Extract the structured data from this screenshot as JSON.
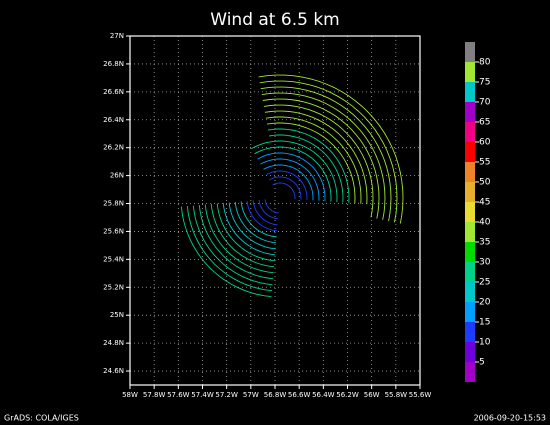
{
  "chart_data": {
    "type": "vector",
    "title": "Wind at 6.5 km",
    "xlim": [
      -58,
      -55.6
    ],
    "ylim": [
      24.5,
      27
    ],
    "xticks": [
      {
        "value": -58,
        "label": "58W"
      },
      {
        "value": -57.8,
        "label": "57.8W"
      },
      {
        "value": -57.6,
        "label": "57.6W"
      },
      {
        "value": -57.4,
        "label": "57.4W"
      },
      {
        "value": -57.2,
        "label": "57.2W"
      },
      {
        "value": -57,
        "label": "57W"
      },
      {
        "value": -56.8,
        "label": "56.8W"
      },
      {
        "value": -56.6,
        "label": "56.6W"
      },
      {
        "value": -56.4,
        "label": "56.4W"
      },
      {
        "value": -56.2,
        "label": "56.2W"
      },
      {
        "value": -56,
        "label": "56W"
      },
      {
        "value": -55.8,
        "label": "55.8W"
      },
      {
        "value": -55.6,
        "label": "55.6W"
      }
    ],
    "yticks": [
      {
        "value": 24.6,
        "label": "24.6N"
      },
      {
        "value": 24.8,
        "label": "24.8N"
      },
      {
        "value": 25,
        "label": "25N"
      },
      {
        "value": 25.2,
        "label": "25.2N"
      },
      {
        "value": 25.4,
        "label": "25.4N"
      },
      {
        "value": 25.6,
        "label": "25.6N"
      },
      {
        "value": 25.8,
        "label": "25.8N"
      },
      {
        "value": 26,
        "label": "26N"
      },
      {
        "value": 26.2,
        "label": "26.2N"
      },
      {
        "value": 26.4,
        "label": "26.4N"
      },
      {
        "value": 26.6,
        "label": "26.6N"
      },
      {
        "value": 26.8,
        "label": "26.8N"
      },
      {
        "value": 27,
        "label": "27N"
      }
    ],
    "grid": true,
    "colorbar": {
      "levels": [
        5,
        10,
        15,
        20,
        25,
        30,
        35,
        40,
        45,
        50,
        55,
        60,
        65,
        70,
        75,
        80
      ],
      "colors": [
        "#a000c8",
        "#6e00dc",
        "#1e3cff",
        "#00a0ff",
        "#00c8c8",
        "#00d28c",
        "#00dc00",
        "#a0e632",
        "#e6dc32",
        "#e6af2d",
        "#f08228",
        "#fa0000",
        "#f00082",
        "#a000c8",
        "#00c8c8",
        "#a0e632",
        "#808080"
      ]
    },
    "footer_left": "GrADS: COLA/IGES",
    "footer_right": "2006-09-20-15:53"
  }
}
